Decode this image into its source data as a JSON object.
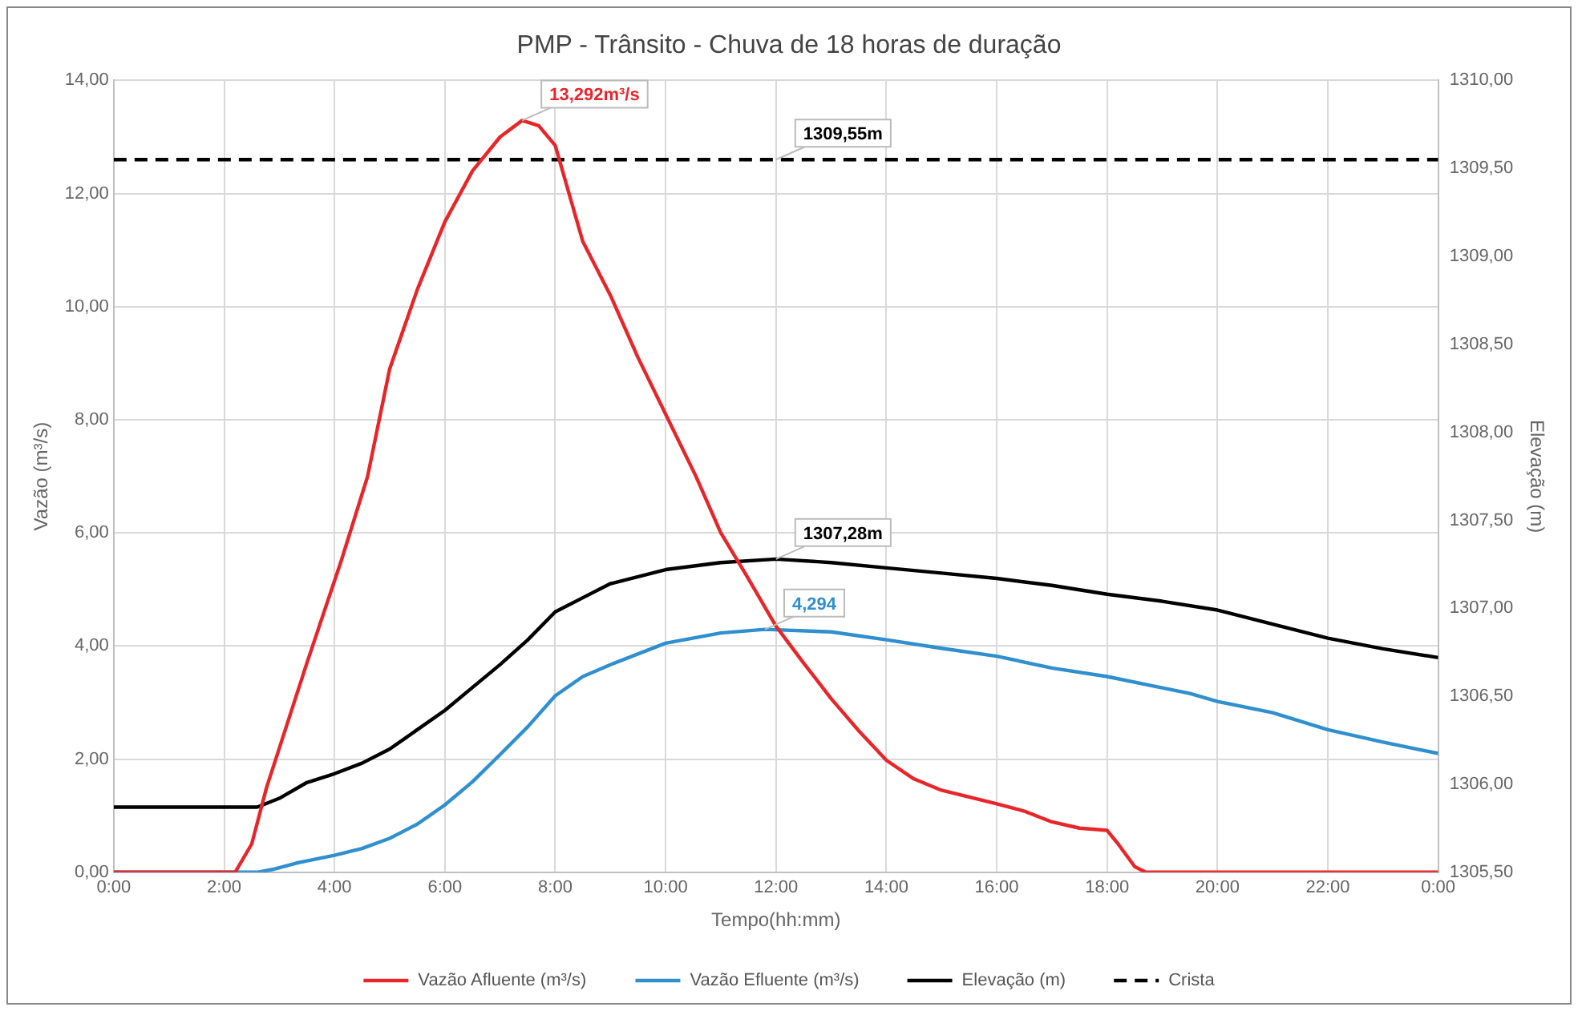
{
  "chart_data": {
    "type": "line",
    "title": "PMP - Trânsito - Chuva de 18 horas de duração",
    "xlabel": "Tempo(hh:mm)",
    "ylabel": "Vazão (m³/s)",
    "y2label": "Elevação (m)",
    "xlim": [
      0,
      24
    ],
    "xticks": [
      {
        "value": 0,
        "label": "0:00"
      },
      {
        "value": 2,
        "label": "2:00"
      },
      {
        "value": 4,
        "label": "4:00"
      },
      {
        "value": 6,
        "label": "6:00"
      },
      {
        "value": 8,
        "label": "8:00"
      },
      {
        "value": 10,
        "label": "10:00"
      },
      {
        "value": 12,
        "label": "12:00"
      },
      {
        "value": 14,
        "label": "14:00"
      },
      {
        "value": 16,
        "label": "16:00"
      },
      {
        "value": 18,
        "label": "18:00"
      },
      {
        "value": 20,
        "label": "20:00"
      },
      {
        "value": 22,
        "label": "22:00"
      },
      {
        "value": 24,
        "label": "0:00"
      }
    ],
    "ylim": [
      0,
      14
    ],
    "yticks": [
      {
        "value": 0,
        "label": "0,00"
      },
      {
        "value": 2,
        "label": "2,00"
      },
      {
        "value": 4,
        "label": "4,00"
      },
      {
        "value": 6,
        "label": "6,00"
      },
      {
        "value": 8,
        "label": "8,00"
      },
      {
        "value": 10,
        "label": "10,00"
      },
      {
        "value": 12,
        "label": "12,00"
      },
      {
        "value": 14,
        "label": "14,00"
      }
    ],
    "y2lim": [
      1305.5,
      1310
    ],
    "y2ticks": [
      {
        "value": 1305.5,
        "label": "1305,50"
      },
      {
        "value": 1306,
        "label": "1306,00"
      },
      {
        "value": 1306.5,
        "label": "1306,50"
      },
      {
        "value": 1307,
        "label": "1307,00"
      },
      {
        "value": 1307.5,
        "label": "1307,50"
      },
      {
        "value": 1308,
        "label": "1308,00"
      },
      {
        "value": 1308.5,
        "label": "1308,50"
      },
      {
        "value": 1309,
        "label": "1309,00"
      },
      {
        "value": 1309.5,
        "label": "1309,50"
      },
      {
        "value": 1310,
        "label": "1310,00"
      }
    ],
    "grid": true,
    "legend": "bottom",
    "marker": "none",
    "series": [
      {
        "name": "Vazão Afluente (m³/s)",
        "color": "#e8262a",
        "x": [
          0,
          2.2,
          2.5,
          2.77,
          3.5,
          4.12,
          4.6,
          5,
          5.5,
          6,
          6.5,
          7,
          7.4,
          7.7,
          8,
          8.5,
          9,
          9.5,
          10,
          10.55,
          11,
          11.47,
          12,
          12.5,
          13,
          13.5,
          14,
          14.5,
          15,
          16,
          16.5,
          17,
          17.5,
          18,
          18.2,
          18.5,
          18.7,
          24
        ],
        "values": [
          0,
          0,
          0.5,
          1.5,
          3.7,
          5.5,
          7.0,
          8.9,
          10.3,
          11.5,
          12.4,
          13.0,
          13.292,
          13.2,
          12.85,
          11.15,
          10.2,
          9.1,
          8.1,
          7.0,
          6.0,
          5.24,
          4.35,
          3.7,
          3.07,
          2.5,
          1.98,
          1.65,
          1.45,
          1.21,
          1.08,
          0.89,
          0.78,
          0.74,
          0.5,
          0.1,
          0,
          0
        ]
      },
      {
        "name": "Vazão Efluente (m³/s)",
        "color": "#2f8fcf",
        "x": [
          0,
          2.6,
          2.88,
          3.3,
          3.5,
          4,
          4.5,
          5,
          5.5,
          6,
          6.5,
          7,
          7.5,
          8,
          8.5,
          9,
          10,
          11,
          11.8,
          13,
          14,
          15,
          16,
          17,
          18,
          19,
          19.5,
          20,
          21,
          22,
          23,
          24
        ],
        "values": [
          0,
          0,
          0.05,
          0.16,
          0.2,
          0.3,
          0.42,
          0.6,
          0.85,
          1.19,
          1.6,
          2.08,
          2.57,
          3.12,
          3.46,
          3.67,
          4.05,
          4.23,
          4.294,
          4.25,
          4.11,
          3.96,
          3.82,
          3.61,
          3.46,
          3.26,
          3.16,
          3.02,
          2.82,
          2.52,
          2.3,
          2.1
        ]
      },
      {
        "name": "Elevação (m)",
        "color": "#000000",
        "axis": "y2",
        "x": [
          0,
          2.6,
          3,
          3.5,
          4,
          4.5,
          5,
          5.5,
          6,
          6.5,
          7,
          7.5,
          8,
          8.5,
          9,
          10,
          11,
          12,
          13,
          14,
          15,
          16,
          17,
          18,
          19,
          20,
          21,
          22,
          23,
          24
        ],
        "values": [
          1305.87,
          1305.87,
          1305.92,
          1306.01,
          1306.06,
          1306.12,
          1306.2,
          1306.31,
          1306.42,
          1306.55,
          1306.68,
          1306.82,
          1306.98,
          1307.06,
          1307.14,
          1307.22,
          1307.26,
          1307.28,
          1307.26,
          1307.23,
          1307.2,
          1307.17,
          1307.13,
          1307.08,
          1307.04,
          1306.99,
          1306.91,
          1306.83,
          1306.77,
          1306.72
        ]
      },
      {
        "name": "Crista",
        "color": "#000000",
        "axis": "y2",
        "line_style": "dashed",
        "x": [
          0,
          24
        ],
        "values": [
          1309.55,
          1309.55
        ]
      }
    ],
    "annotations": [
      {
        "text": "13,292m³/s",
        "x": 7.4,
        "y": 13.292
      },
      "1307,28m",
      "1309,55m",
      {
        "text": "4,294",
        "x": 11.8,
        "y": 4.294
      }
    ]
  }
}
